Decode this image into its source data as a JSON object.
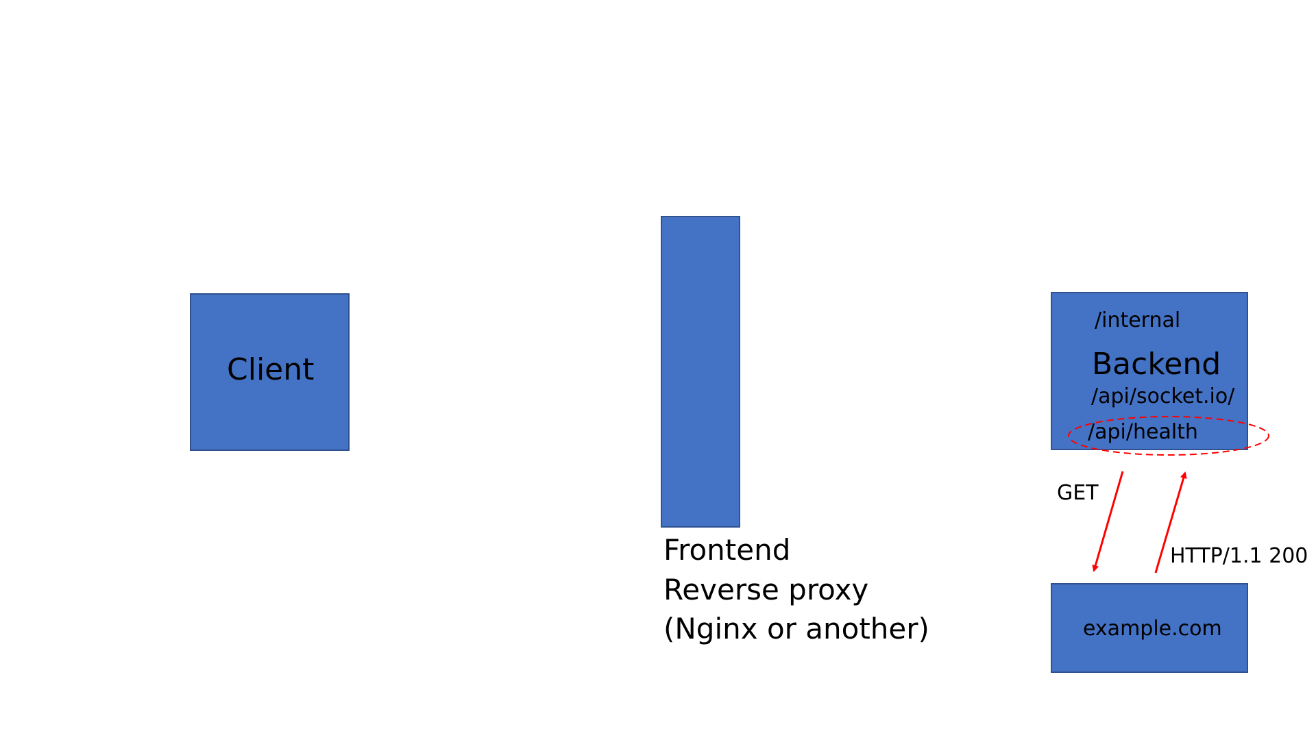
{
  "nodes": {
    "client": {
      "label": "Client"
    },
    "frontend": {
      "lines": [
        "Frontend",
        "Reverse proxy",
        "(Nginx or another)"
      ]
    },
    "backend": {
      "title": "Backend",
      "route_internal": "/internal",
      "route_socket": "/api/socket.io/",
      "route_health": "/api/health"
    },
    "external": {
      "label": "example.com"
    }
  },
  "edges": {
    "request_label": "GET",
    "response_label": "HTTP/1.1 200"
  },
  "colors": {
    "box_fill": "#4472C4",
    "box_border": "#2F528F",
    "arrow": "#FF0000",
    "highlight": "#FF0000"
  }
}
